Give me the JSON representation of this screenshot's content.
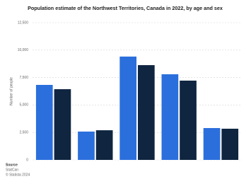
{
  "chart_data": {
    "type": "bar",
    "title": "Population estimate of the Northwest Territories, Canada in 2022, by age and sex",
    "y_label": "Number of people",
    "categories": [
      null,
      null,
      null,
      null,
      null
    ],
    "series": [
      {
        "color": "#2b6fdc",
        "values": [
          6830,
          2580,
          9410,
          7800,
          2900
        ]
      },
      {
        "color": "#0f2540",
        "values": [
          6440,
          2700,
          8630,
          7220,
          2840
        ]
      }
    ],
    "ylim": [
      0,
      12500
    ],
    "yticks": [
      0,
      {
        "value": 2500,
        "label": "2,500"
      },
      {
        "value": 5000,
        "label": "5,000"
      },
      {
        "value": 7500,
        "label": "7,500"
      },
      {
        "value": 10000,
        "label": "10,000"
      },
      {
        "value": 12500,
        "label": "12,500"
      }
    ],
    "grid": true,
    "source": {
      "heading": "Source",
      "name": "StatCan",
      "copyright": "© Statista 2024"
    }
  }
}
